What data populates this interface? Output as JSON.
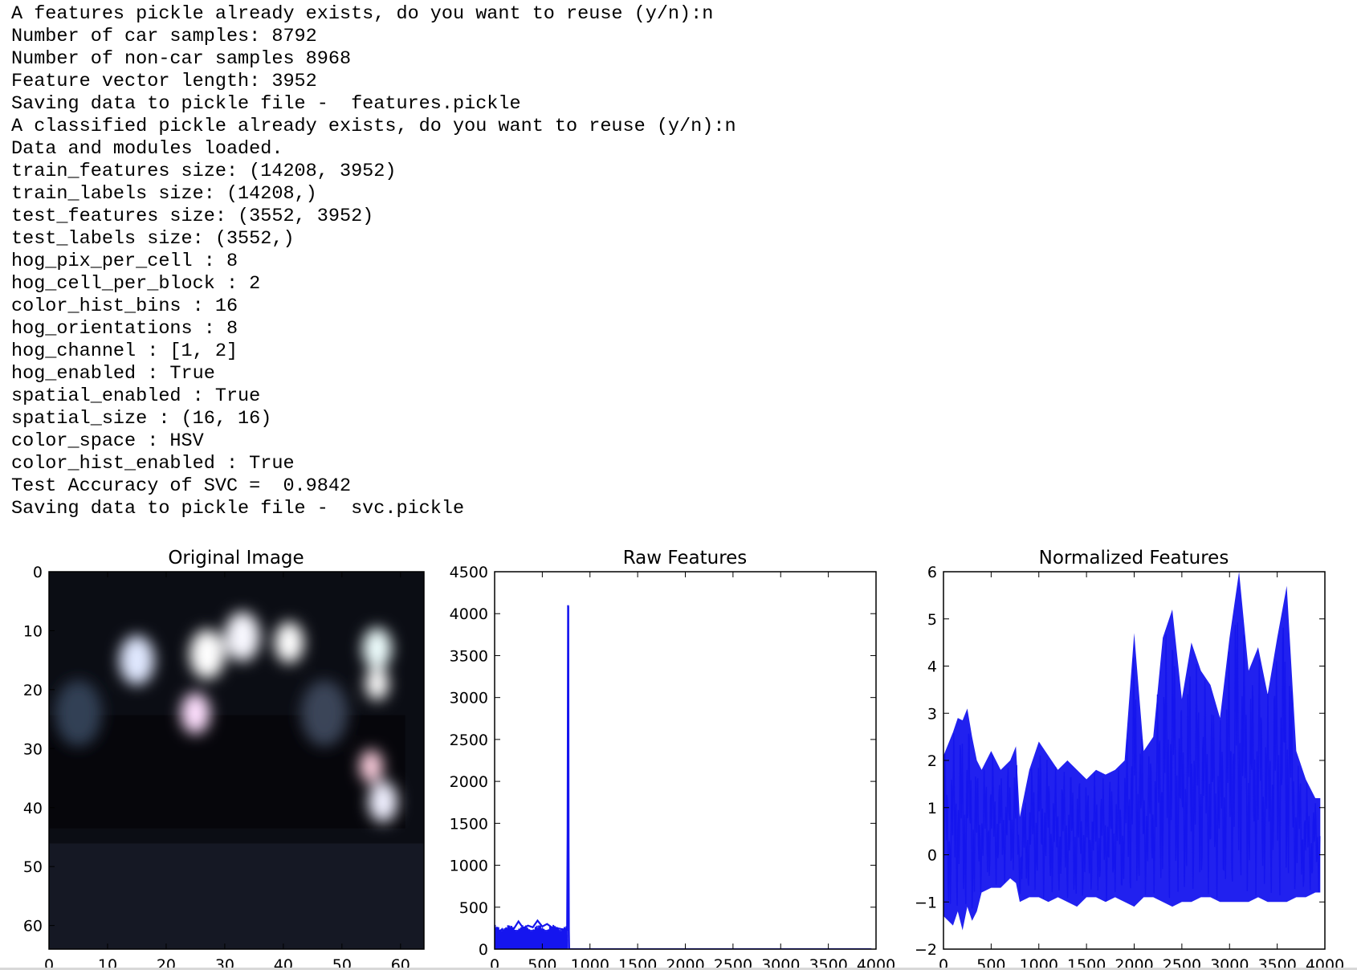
{
  "console": {
    "lines": [
      "A features pickle already exists, do you want to reuse (y/n):n",
      "Number of car samples: 8792",
      "Number of non-car samples 8968",
      "Feature vector length: 3952",
      "Saving data to pickle file -  features.pickle",
      "A classified pickle already exists, do you want to reuse (y/n):n",
      "Data and modules loaded.",
      "train_features size: (14208, 3952)",
      "train_labels size: (14208,)",
      "test_features size: (3552, 3952)",
      "test_labels size: (3552,)",
      "hog_pix_per_cell : 8",
      "hog_cell_per_block : 2",
      "color_hist_bins : 16",
      "hog_orientations : 8",
      "hog_channel : [1, 2]",
      "hog_enabled : True",
      "spatial_enabled : True",
      "spatial_size : (16, 16)",
      "color_space : HSV",
      "color_hist_enabled : True",
      "Test Accuracy of SVC =  0.9842",
      "Saving data to pickle file -  svc.pickle"
    ]
  },
  "chart_data": [
    {
      "type": "image",
      "title": "Original Image",
      "xticks": [
        0,
        10,
        20,
        30,
        40,
        50,
        60
      ],
      "yticks": [
        0,
        10,
        20,
        30,
        40,
        50,
        60
      ],
      "xlim": [
        0,
        64
      ],
      "ylim": [
        64,
        0
      ],
      "background_color": "#0b0d14",
      "blobs": [
        {
          "x": 15,
          "y": 15,
          "r": 3,
          "color": "#e0e8ff"
        },
        {
          "x": 27,
          "y": 14,
          "r": 3,
          "color": "#ffffff"
        },
        {
          "x": 33,
          "y": 11,
          "r": 3,
          "color": "#f8f8ff"
        },
        {
          "x": 41,
          "y": 12,
          "r": 2.5,
          "color": "#ffffff"
        },
        {
          "x": 25,
          "y": 24,
          "r": 2.5,
          "color": "#ffe0ff"
        },
        {
          "x": 56,
          "y": 13,
          "r": 2.5,
          "color": "#f0ffff"
        },
        {
          "x": 56,
          "y": 19,
          "r": 2,
          "color": "#ffffff"
        },
        {
          "x": 55,
          "y": 33,
          "r": 2,
          "color": "#ffd0e0"
        },
        {
          "x": 57,
          "y": 39,
          "r": 2.5,
          "color": "#f0f0ff"
        },
        {
          "x": 5,
          "y": 24,
          "r": 4,
          "color": "#304055"
        },
        {
          "x": 47,
          "y": 24,
          "r": 4,
          "color": "#3a4458"
        }
      ]
    },
    {
      "type": "line",
      "title": "Raw Features",
      "xlim": [
        0,
        4000
      ],
      "ylim": [
        0,
        4500
      ],
      "xticks": [
        0,
        500,
        1000,
        1500,
        2000,
        2500,
        3000,
        3500,
        4000
      ],
      "yticks": [
        0,
        500,
        1000,
        1500,
        2000,
        2500,
        3000,
        3500,
        4000,
        4500
      ],
      "color": "#1515ee",
      "x": [
        0,
        20,
        40,
        60,
        80,
        100,
        150,
        200,
        250,
        300,
        350,
        400,
        450,
        500,
        550,
        600,
        650,
        700,
        760,
        765,
        770,
        773,
        776,
        779,
        782,
        790,
        3952
      ],
      "y": [
        190,
        230,
        120,
        220,
        240,
        200,
        260,
        240,
        330,
        250,
        280,
        260,
        340,
        270,
        300,
        260,
        250,
        240,
        230,
        1380,
        4100,
        4080,
        1300,
        220,
        0,
        0,
        0
      ]
    },
    {
      "type": "line",
      "title": "Normalized Features",
      "xlim": [
        0,
        4000
      ],
      "ylim": [
        -2,
        6
      ],
      "xticks": [
        0,
        500,
        1000,
        1500,
        2000,
        2500,
        3000,
        3500,
        4000
      ],
      "yticks": [
        -2,
        -1,
        0,
        1,
        2,
        3,
        4,
        5,
        6
      ],
      "color": "#1515ee",
      "x": [
        0,
        100,
        150,
        200,
        250,
        300,
        350,
        400,
        500,
        600,
        700,
        760,
        800,
        900,
        1000,
        1100,
        1200,
        1300,
        1400,
        1500,
        1600,
        1700,
        1800,
        1900,
        2000,
        2100,
        2200,
        2300,
        2400,
        2500,
        2600,
        2700,
        2800,
        2900,
        3000,
        3100,
        3200,
        3300,
        3400,
        3500,
        3600,
        3700,
        3800,
        3900,
        3952
      ],
      "y_upper": [
        2.1,
        2.6,
        2.9,
        2.85,
        3.1,
        2.5,
        2.0,
        1.8,
        2.2,
        1.8,
        2.0,
        2.3,
        0.8,
        1.8,
        2.4,
        2.1,
        1.8,
        2.0,
        1.8,
        1.6,
        1.8,
        1.7,
        1.8,
        2.0,
        4.7,
        2.2,
        2.5,
        4.6,
        5.2,
        3.3,
        4.5,
        3.9,
        3.6,
        2.9,
        4.6,
        6.0,
        3.9,
        4.4,
        3.4,
        4.6,
        5.7,
        2.2,
        1.6,
        1.2,
        1.2
      ],
      "y_lower": [
        -1.3,
        -1.5,
        -1.2,
        -1.6,
        -1.1,
        -1.4,
        -1.2,
        -0.8,
        -0.7,
        -0.7,
        -0.5,
        -0.6,
        -1.0,
        -0.9,
        -0.9,
        -1.0,
        -0.9,
        -1.0,
        -1.1,
        -0.9,
        -0.9,
        -1.0,
        -0.9,
        -1.0,
        -1.1,
        -0.9,
        -0.9,
        -1.0,
        -1.1,
        -1.0,
        -1.0,
        -0.9,
        -0.9,
        -1.0,
        -1.0,
        -1.0,
        -1.0,
        -0.9,
        -1.0,
        -1.0,
        -1.0,
        -0.9,
        -0.9,
        -0.8,
        -0.8
      ]
    }
  ]
}
